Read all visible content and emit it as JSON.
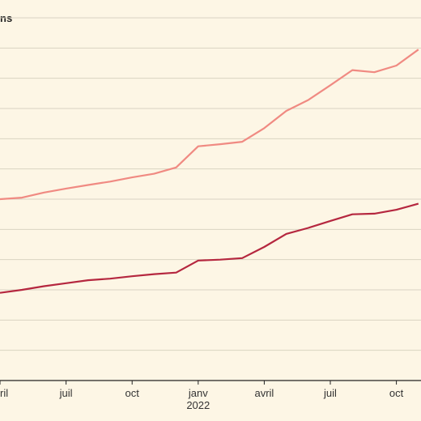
{
  "chart_data": {
    "type": "line",
    "title": "ns",
    "x": [
      "2021-04",
      "2021-05",
      "2021-06",
      "2021-07",
      "2021-08",
      "2021-09",
      "2021-10",
      "2021-11",
      "2021-12",
      "2022-01",
      "2022-02",
      "2022-03",
      "2022-04",
      "2022-05",
      "2022-06",
      "2022-07",
      "2022-08",
      "2022-09",
      "2022-10",
      "2022-11"
    ],
    "x_tick_labels": [
      "ril",
      "juil",
      "oct",
      "janv",
      "avril",
      "juil",
      "oct"
    ],
    "x_year_label": "2022",
    "ylim": [
      0,
      12
    ],
    "grid": true,
    "series": [
      {
        "color": "#f08a82",
        "values": [
          6.0,
          6.05,
          6.22,
          6.35,
          6.47,
          6.58,
          6.72,
          6.84,
          7.05,
          7.75,
          7.82,
          7.9,
          8.35,
          8.92,
          9.28,
          9.77,
          10.27,
          10.2,
          10.42,
          10.95
        ]
      },
      {
        "color": "#b5273f",
        "values": [
          2.9,
          3.0,
          3.12,
          3.22,
          3.32,
          3.37,
          3.45,
          3.52,
          3.57,
          3.97,
          4.0,
          4.05,
          4.42,
          4.85,
          5.05,
          5.28,
          5.5,
          5.52,
          5.65,
          5.85
        ]
      }
    ],
    "colors": {
      "background": "#fdf6e5",
      "grid": "#d9d3c2",
      "axis": "#222222"
    }
  }
}
